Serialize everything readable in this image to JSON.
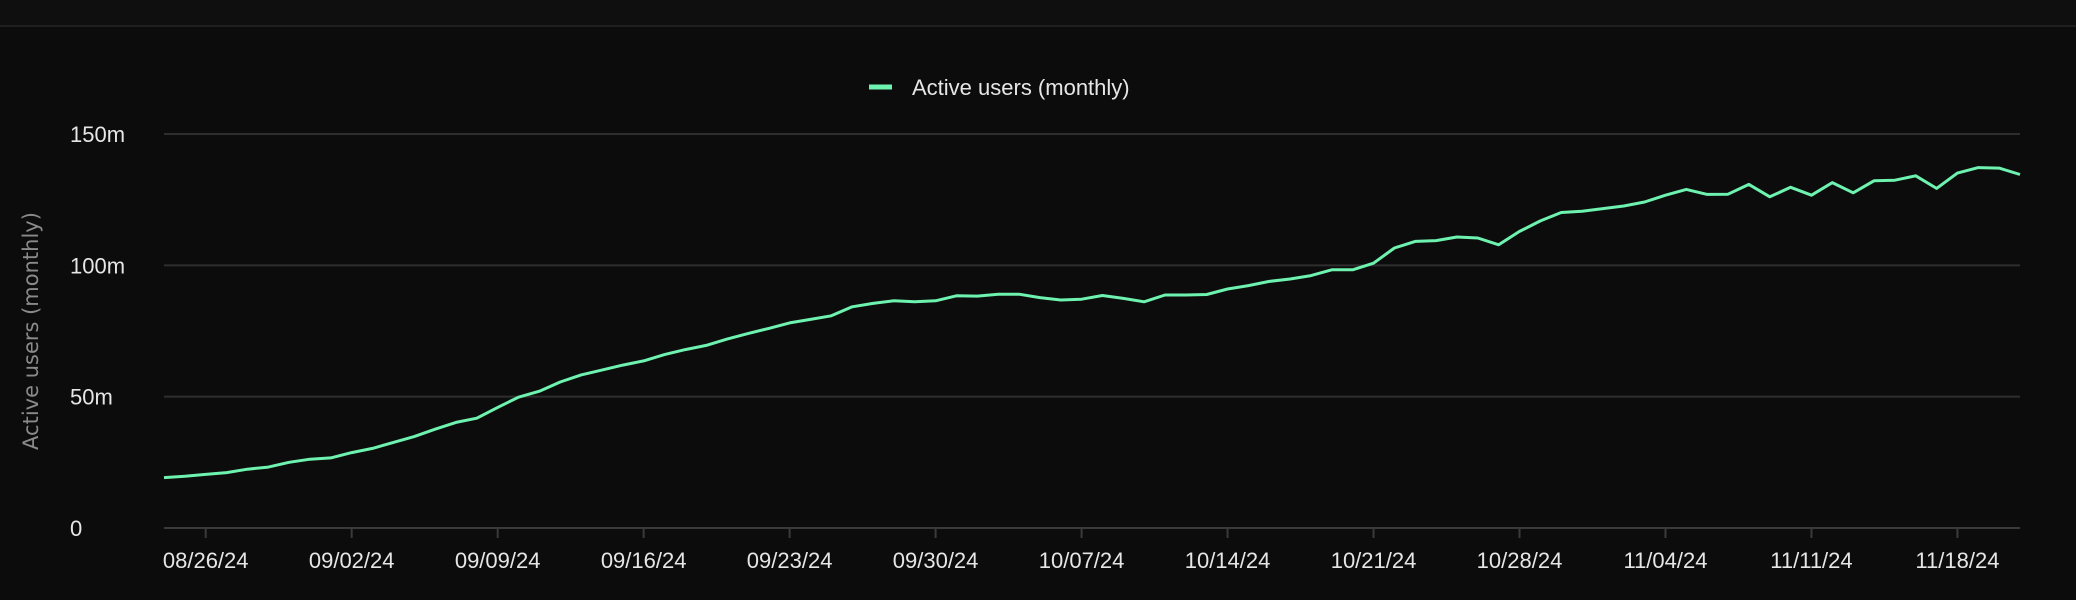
{
  "chart_data": {
    "type": "line",
    "title": "",
    "ylabel": "Active users (monthly)",
    "xlabel": "",
    "ylim": [
      0,
      150
    ],
    "y_ticks": [
      0,
      50,
      100,
      150
    ],
    "y_tick_labels": [
      "0",
      "50m",
      "100m",
      "150m"
    ],
    "x_tick_labels": [
      "08/26/24",
      "09/02/24",
      "09/09/24",
      "09/16/24",
      "09/23/24",
      "09/30/24",
      "10/07/24",
      "10/14/24",
      "10/21/24",
      "10/28/24",
      "11/04/24",
      "11/11/24",
      "11/18/24"
    ],
    "grid": true,
    "legend_position": "top-center",
    "colors": {
      "line": "#6ef2b0",
      "background": "#0c0c0c",
      "grid": "#2e2e2e"
    },
    "x": [
      "08/24/24",
      "08/25/24",
      "08/26/24",
      "08/27/24",
      "08/28/24",
      "08/29/24",
      "08/30/24",
      "08/31/24",
      "09/01/24",
      "09/02/24",
      "09/03/24",
      "09/04/24",
      "09/05/24",
      "09/06/24",
      "09/07/24",
      "09/08/24",
      "09/09/24",
      "09/10/24",
      "09/11/24",
      "09/12/24",
      "09/13/24",
      "09/14/24",
      "09/15/24",
      "09/16/24",
      "09/17/24",
      "09/18/24",
      "09/19/24",
      "09/20/24",
      "09/21/24",
      "09/22/24",
      "09/23/24",
      "09/24/24",
      "09/25/24",
      "09/26/24",
      "09/27/24",
      "09/28/24",
      "09/29/24",
      "09/30/24",
      "10/01/24",
      "10/02/24",
      "10/03/24",
      "10/04/24",
      "10/05/24",
      "10/06/24",
      "10/07/24",
      "10/08/24",
      "10/09/24",
      "10/10/24",
      "10/11/24",
      "10/12/24",
      "10/13/24",
      "10/14/24",
      "10/15/24",
      "10/16/24",
      "10/17/24",
      "10/18/24",
      "10/19/24",
      "10/20/24",
      "10/21/24",
      "10/22/24",
      "10/23/24",
      "10/24/24",
      "10/25/24",
      "10/26/24",
      "10/27/24",
      "10/28/24",
      "10/29/24",
      "10/30/24",
      "10/31/24",
      "11/01/24",
      "11/02/24",
      "11/03/24",
      "11/04/24",
      "11/05/24",
      "11/06/24",
      "11/07/24",
      "11/08/24",
      "11/09/24",
      "11/10/24",
      "11/11/24",
      "11/12/24",
      "11/13/24",
      "11/14/24",
      "11/15/24",
      "11/16/24",
      "11/17/24",
      "11/18/24",
      "11/19/24",
      "11/20/24",
      "11/21/24"
    ],
    "series": [
      {
        "name": "Active users (monthly)",
        "values": [
          19.2,
          19.7,
          20.4,
          21.1,
          22.4,
          23.2,
          25.0,
          26.2,
          26.7,
          28.7,
          30.3,
          32.6,
          34.8,
          37.6,
          40.2,
          41.8,
          45.9,
          49.8,
          52.1,
          55.6,
          58.3,
          60.1,
          62.0,
          63.6,
          66.0,
          67.9,
          69.5,
          71.9,
          74.0,
          76.0,
          78.1,
          79.4,
          80.8,
          84.2,
          85.5,
          86.5,
          86.1,
          86.5,
          88.4,
          88.3,
          89.0,
          89.0,
          87.7,
          86.8,
          87.1,
          88.5,
          87.4,
          86.1,
          88.7,
          88.7,
          88.9,
          91.0,
          92.3,
          93.9,
          94.8,
          96.1,
          98.3,
          98.3,
          100.8,
          106.6,
          109.1,
          109.4,
          110.8,
          110.4,
          107.8,
          112.9,
          116.9,
          120.1,
          120.6,
          121.6,
          122.6,
          124.1,
          126.7,
          128.9,
          127.0,
          127.1,
          130.8,
          126.1,
          129.7,
          126.7,
          131.5,
          127.6,
          132.2,
          132.4,
          134.1,
          129.3,
          135.1,
          137.2,
          137.0,
          134.6
        ]
      }
    ]
  }
}
